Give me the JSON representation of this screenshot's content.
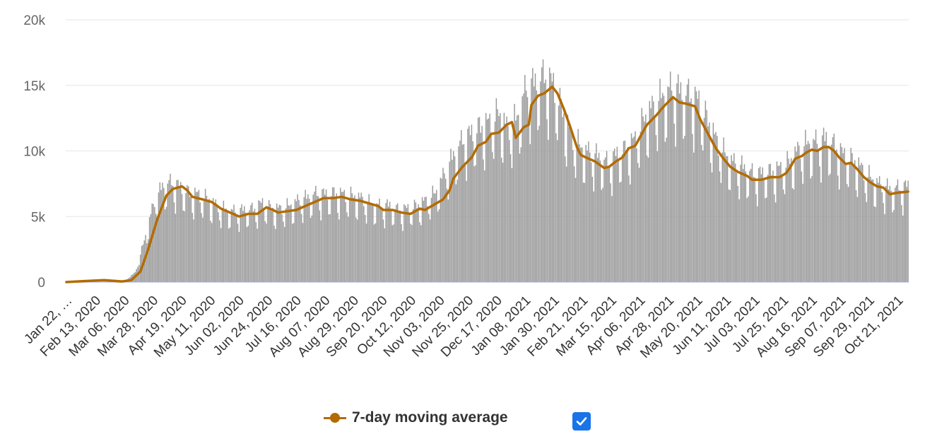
{
  "chart_data": {
    "type": "bar",
    "title": "",
    "xlabel": "",
    "ylabel": "",
    "ylim": [
      0,
      20000
    ],
    "y_ticks": [
      0,
      5000,
      10000,
      15000,
      20000
    ],
    "y_tick_labels": [
      "0",
      "5k",
      "10k",
      "15k",
      "20k"
    ],
    "x_tick_labels": [
      "Jan 22, …",
      "Feb 13, 2020",
      "Mar 06, 2020",
      "Mar 28, 2020",
      "Apr 19, 2020",
      "May 11, 2020",
      "Jun 02, 2020",
      "Jun 24, 2020",
      "Jul 16, 2020",
      "Aug 07, 2020",
      "Aug 29, 2020",
      "Sep 20, 2020",
      "Oct 12, 2020",
      "Nov 03, 2020",
      "Nov 25, 2020",
      "Dec 17, 2020",
      "Jan 08, 2021",
      "Jan 30, 2021",
      "Feb 21, 2021",
      "Mar 15, 2021",
      "Apr 06, 2021",
      "Apr 28, 2021",
      "May 20, 2021",
      "Jun 11, 2021",
      "Jul 03, 2021",
      "Jul 25, 2021",
      "Aug 16, 2021",
      "Sep 07, 2021",
      "Sep 29, 2021",
      "Oct 21, 2021"
    ],
    "x_range": [
      "2020-01-22",
      "2021-10-31"
    ],
    "grid": true,
    "bar_color": "#999999",
    "line_color": "#b36b00",
    "series": [
      {
        "name": "",
        "kind": "bar",
        "points": [
          [
            "2020-01-22",
            0
          ],
          [
            "2020-03-01",
            60
          ],
          [
            "2020-03-08",
            150
          ],
          [
            "2020-03-15",
            700
          ],
          [
            "2020-03-22",
            3000
          ],
          [
            "2020-03-29",
            5600
          ],
          [
            "2020-04-05",
            6900
          ],
          [
            "2020-04-12",
            7200
          ],
          [
            "2020-04-19",
            6800
          ],
          [
            "2020-04-26",
            6400
          ],
          [
            "2020-05-03",
            6300
          ],
          [
            "2020-05-10",
            6000
          ],
          [
            "2020-05-17",
            5500
          ],
          [
            "2020-05-24",
            5200
          ],
          [
            "2020-05-31",
            5100
          ],
          [
            "2020-06-07",
            5200
          ],
          [
            "2020-06-14",
            5300
          ],
          [
            "2020-06-21",
            5700
          ],
          [
            "2020-06-28",
            5300
          ],
          [
            "2020-07-05",
            5300
          ],
          [
            "2020-07-12",
            5500
          ],
          [
            "2020-07-19",
            5900
          ],
          [
            "2020-07-26",
            6100
          ],
          [
            "2020-08-02",
            6400
          ],
          [
            "2020-08-09",
            6300
          ],
          [
            "2020-08-16",
            6400
          ],
          [
            "2020-08-23",
            6300
          ],
          [
            "2020-08-30",
            6200
          ],
          [
            "2020-09-06",
            6000
          ],
          [
            "2020-09-13",
            5600
          ],
          [
            "2020-09-20",
            5500
          ],
          [
            "2020-09-27",
            5500
          ],
          [
            "2020-10-04",
            5200
          ],
          [
            "2020-10-11",
            5300
          ],
          [
            "2020-10-18",
            5500
          ],
          [
            "2020-10-25",
            5900
          ],
          [
            "2020-11-01",
            6400
          ],
          [
            "2020-11-08",
            7800
          ],
          [
            "2020-11-15",
            9100
          ],
          [
            "2020-11-22",
            10200
          ],
          [
            "2020-11-29",
            10700
          ],
          [
            "2020-12-06",
            11200
          ],
          [
            "2020-12-13",
            11500
          ],
          [
            "2020-12-20",
            12200
          ],
          [
            "2020-12-27",
            11000
          ],
          [
            "2021-01-03",
            11800
          ],
          [
            "2021-01-10",
            14000
          ],
          [
            "2021-01-17",
            14300
          ],
          [
            "2021-01-24",
            14900
          ],
          [
            "2021-01-31",
            14200
          ],
          [
            "2021-02-07",
            12300
          ],
          [
            "2021-02-14",
            10500
          ],
          [
            "2021-02-21",
            9700
          ],
          [
            "2021-02-28",
            9300
          ],
          [
            "2021-03-07",
            9000
          ],
          [
            "2021-03-14",
            8600
          ],
          [
            "2021-03-21",
            9200
          ],
          [
            "2021-03-28",
            9600
          ],
          [
            "2021-04-04",
            10300
          ],
          [
            "2021-04-11",
            11800
          ],
          [
            "2021-04-18",
            12700
          ],
          [
            "2021-04-25",
            13400
          ],
          [
            "2021-05-02",
            14000
          ],
          [
            "2021-05-09",
            13700
          ],
          [
            "2021-05-16",
            13500
          ],
          [
            "2021-05-23",
            13000
          ],
          [
            "2021-05-30",
            11600
          ],
          [
            "2021-06-06",
            10100
          ],
          [
            "2021-06-13",
            9100
          ],
          [
            "2021-06-20",
            8500
          ],
          [
            "2021-06-27",
            8200
          ],
          [
            "2021-07-04",
            7800
          ],
          [
            "2021-07-11",
            7800
          ],
          [
            "2021-07-18",
            8000
          ],
          [
            "2021-07-25",
            8200
          ],
          [
            "2021-08-01",
            8700
          ],
          [
            "2021-08-08",
            9600
          ],
          [
            "2021-08-15",
            10000
          ],
          [
            "2021-08-22",
            10100
          ],
          [
            "2021-08-29",
            10300
          ],
          [
            "2021-09-05",
            9800
          ],
          [
            "2021-09-12",
            9100
          ],
          [
            "2021-09-19",
            8800
          ],
          [
            "2021-09-26",
            8100
          ],
          [
            "2021-10-03",
            7400
          ],
          [
            "2021-10-10",
            7000
          ],
          [
            "2021-10-17",
            6700
          ],
          [
            "2021-10-24",
            6800
          ],
          [
            "2021-10-31",
            6900
          ]
        ]
      },
      {
        "name": "7-day moving average",
        "kind": "line",
        "points": [
          [
            "2020-01-22",
            0
          ],
          [
            "2020-02-06",
            80
          ],
          [
            "2020-02-20",
            150
          ],
          [
            "2020-03-05",
            50
          ],
          [
            "2020-03-12",
            150
          ],
          [
            "2020-03-19",
            800
          ],
          [
            "2020-03-25",
            2500
          ],
          [
            "2020-04-01",
            4800
          ],
          [
            "2020-04-08",
            6600
          ],
          [
            "2020-04-13",
            7100
          ],
          [
            "2020-04-20",
            7300
          ],
          [
            "2020-04-24",
            7000
          ],
          [
            "2020-04-28",
            6500
          ],
          [
            "2020-05-06",
            6300
          ],
          [
            "2020-05-13",
            6100
          ],
          [
            "2020-05-20",
            5600
          ],
          [
            "2020-05-27",
            5300
          ],
          [
            "2020-06-03",
            5000
          ],
          [
            "2020-06-10",
            5200
          ],
          [
            "2020-06-17",
            5200
          ],
          [
            "2020-06-24",
            5700
          ],
          [
            "2020-06-29",
            5500
          ],
          [
            "2020-07-03",
            5300
          ],
          [
            "2020-07-10",
            5400
          ],
          [
            "2020-07-17",
            5500
          ],
          [
            "2020-07-24",
            5800
          ],
          [
            "2020-07-31",
            6100
          ],
          [
            "2020-08-07",
            6400
          ],
          [
            "2020-08-14",
            6400
          ],
          [
            "2020-08-21",
            6500
          ],
          [
            "2020-08-28",
            6300
          ],
          [
            "2020-09-04",
            6200
          ],
          [
            "2020-09-11",
            6000
          ],
          [
            "2020-09-18",
            5800
          ],
          [
            "2020-09-22",
            5500
          ],
          [
            "2020-09-29",
            5500
          ],
          [
            "2020-10-06",
            5300
          ],
          [
            "2020-10-13",
            5200
          ],
          [
            "2020-10-20",
            5600
          ],
          [
            "2020-10-24",
            5500
          ],
          [
            "2020-10-31",
            5900
          ],
          [
            "2020-11-07",
            6300
          ],
          [
            "2020-11-12",
            7000
          ],
          [
            "2020-11-15",
            7900
          ],
          [
            "2020-11-22",
            8800
          ],
          [
            "2020-11-29",
            9500
          ],
          [
            "2020-12-04",
            10400
          ],
          [
            "2020-12-10",
            10700
          ],
          [
            "2020-12-14",
            11300
          ],
          [
            "2020-12-20",
            11400
          ],
          [
            "2020-12-26",
            12000
          ],
          [
            "2020-12-30",
            12200
          ],
          [
            "2021-01-02",
            11000
          ],
          [
            "2021-01-05",
            11400
          ],
          [
            "2021-01-08",
            11800
          ],
          [
            "2021-01-12",
            12000
          ],
          [
            "2021-01-14",
            13500
          ],
          [
            "2021-01-19",
            14200
          ],
          [
            "2021-01-24",
            14400
          ],
          [
            "2021-01-30",
            14900
          ],
          [
            "2021-02-03",
            14400
          ],
          [
            "2021-02-08",
            13200
          ],
          [
            "2021-02-13",
            11800
          ],
          [
            "2021-02-18",
            10300
          ],
          [
            "2021-02-21",
            9700
          ],
          [
            "2021-02-25",
            9500
          ],
          [
            "2021-03-04",
            9200
          ],
          [
            "2021-03-11",
            8700
          ],
          [
            "2021-03-15",
            8800
          ],
          [
            "2021-03-20",
            9200
          ],
          [
            "2021-03-25",
            9500
          ],
          [
            "2021-03-30",
            10200
          ],
          [
            "2021-04-04",
            10400
          ],
          [
            "2021-04-09",
            11300
          ],
          [
            "2021-04-13",
            12000
          ],
          [
            "2021-04-20",
            12700
          ],
          [
            "2021-04-26",
            13400
          ],
          [
            "2021-05-03",
            14100
          ],
          [
            "2021-05-08",
            13700
          ],
          [
            "2021-05-13",
            13600
          ],
          [
            "2021-05-20",
            13400
          ],
          [
            "2021-05-24",
            12400
          ],
          [
            "2021-05-30",
            11300
          ],
          [
            "2021-06-05",
            10200
          ],
          [
            "2021-06-11",
            9400
          ],
          [
            "2021-06-16",
            8800
          ],
          [
            "2021-06-22",
            8400
          ],
          [
            "2021-06-29",
            8100
          ],
          [
            "2021-07-03",
            7800
          ],
          [
            "2021-07-10",
            7800
          ],
          [
            "2021-07-17",
            8000
          ],
          [
            "2021-07-24",
            8000
          ],
          [
            "2021-07-29",
            8300
          ],
          [
            "2021-08-01",
            8700
          ],
          [
            "2021-08-05",
            9400
          ],
          [
            "2021-08-10",
            9600
          ],
          [
            "2021-08-14",
            9900
          ],
          [
            "2021-08-18",
            10100
          ],
          [
            "2021-08-22",
            10000
          ],
          [
            "2021-08-27",
            10300
          ],
          [
            "2021-08-31",
            10300
          ],
          [
            "2021-09-04",
            10000
          ],
          [
            "2021-09-08",
            9500
          ],
          [
            "2021-09-13",
            9000
          ],
          [
            "2021-09-17",
            9100
          ],
          [
            "2021-09-22",
            8600
          ],
          [
            "2021-09-27",
            8000
          ],
          [
            "2021-10-02",
            7600
          ],
          [
            "2021-10-07",
            7300
          ],
          [
            "2021-10-12",
            7200
          ],
          [
            "2021-10-17",
            6700
          ],
          [
            "2021-10-22",
            6800
          ],
          [
            "2021-10-31",
            6900
          ]
        ]
      }
    ]
  },
  "legend": {
    "label": "7-day moving average",
    "checked": true,
    "checkbox_color": "#1a73e8"
  }
}
